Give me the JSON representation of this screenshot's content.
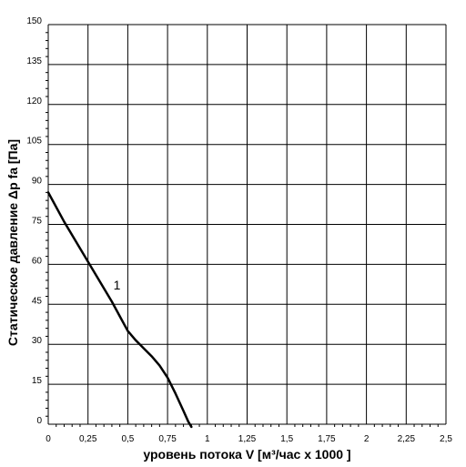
{
  "chart_data": {
    "type": "line",
    "title": "",
    "xlabel": "уровень потока  V [м³/час x 1000 ]",
    "ylabel": "Статическое давление  Δp fa [Па]",
    "xlim": [
      0,
      2.5
    ],
    "ylim": [
      0,
      150
    ],
    "grid": true,
    "x_ticks": [
      "0",
      "0,25",
      "0,5",
      "0,75",
      "1",
      "1,25",
      "1,5",
      "1,75",
      "2",
      "2,25",
      "2,5"
    ],
    "y_ticks": [
      "0",
      "15",
      "30",
      "45",
      "60",
      "75",
      "90",
      "105",
      "120",
      "135",
      "150"
    ],
    "series": [
      {
        "name": "1",
        "x": [
          0,
          0.1,
          0.2,
          0.3,
          0.4,
          0.45,
          0.5,
          0.55,
          0.6,
          0.65,
          0.7,
          0.75,
          0.8,
          0.85,
          0.88,
          0.9
        ],
        "y": [
          87,
          76,
          66,
          56,
          46,
          40.5,
          35,
          31.5,
          28.5,
          25.5,
          22,
          17.5,
          11.5,
          5,
          1,
          -1
        ]
      }
    ],
    "colors": {
      "line": "#000000",
      "grid": "#000000"
    }
  }
}
